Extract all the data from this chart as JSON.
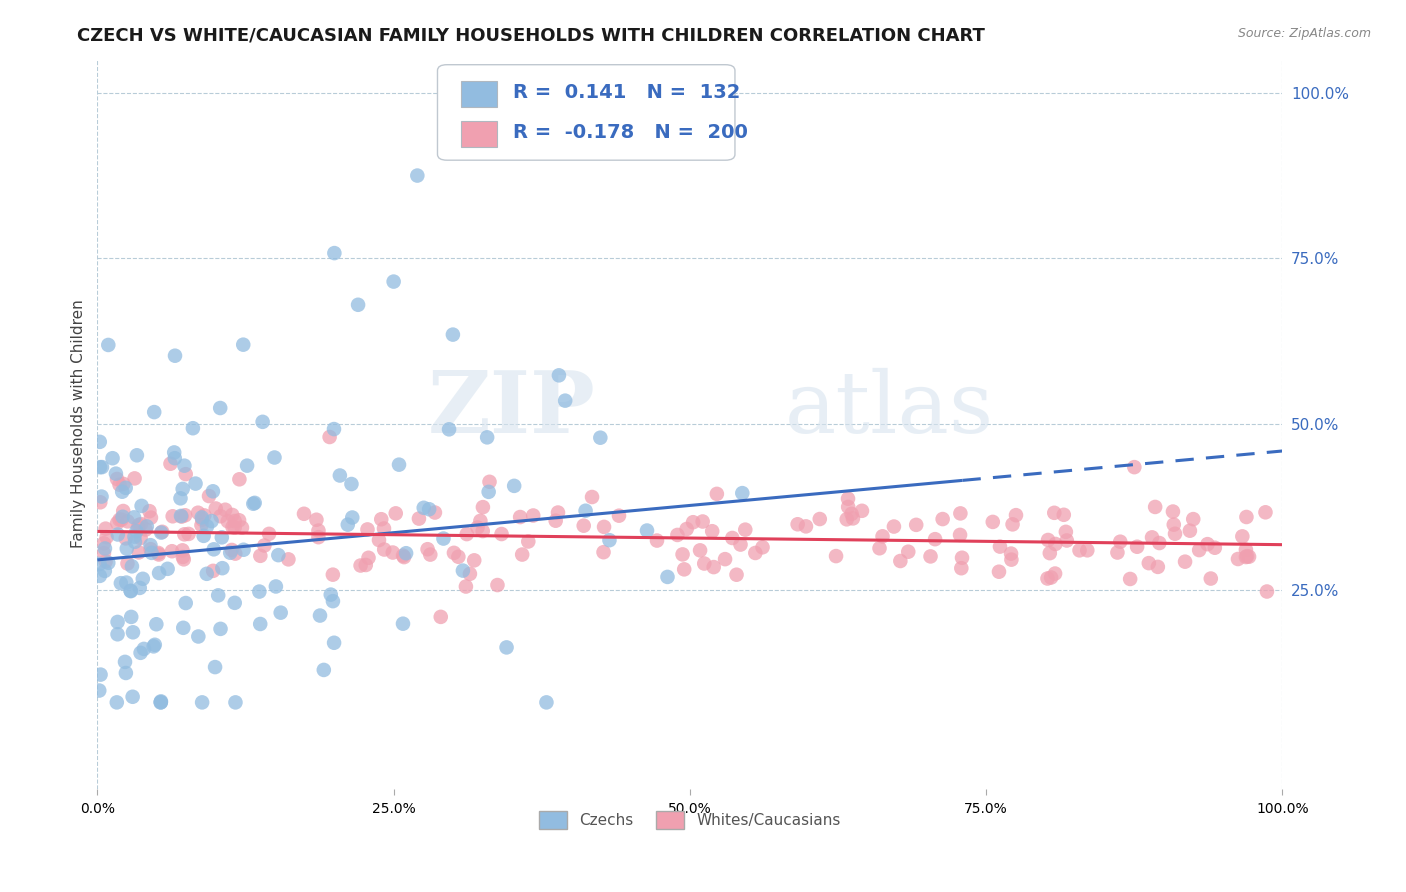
{
  "title": "CZECH VS WHITE/CAUCASIAN FAMILY HOUSEHOLDS WITH CHILDREN CORRELATION CHART",
  "source": "Source: ZipAtlas.com",
  "ylabel": "Family Households with Children",
  "blue_label": "Czechs",
  "pink_label": "Whites/Caucasians",
  "R_blue_str": "0.141",
  "N_blue_str": "132",
  "R_pink_str": "-0.178",
  "N_pink_str": "200",
  "blue_color": "#92bce0",
  "pink_color": "#f0a0b0",
  "trend_blue": "#3a6bbf",
  "trend_pink": "#e0405a",
  "bg_color": "#ffffff",
  "grid_color": "#b8ccd8",
  "xlim": [
    0.0,
    1.0
  ],
  "ylim": [
    -0.05,
    1.05
  ],
  "xticks": [
    0.0,
    0.25,
    0.5,
    0.75,
    1.0
  ],
  "xtick_labels": [
    "0.0%",
    "25.0%",
    "50.0%",
    "75.0%",
    "100.0%"
  ],
  "yticks_right": [
    0.25,
    0.5,
    0.75,
    1.0
  ],
  "ytick_labels_right": [
    "25.0%",
    "50.0%",
    "75.0%",
    "100.0%"
  ],
  "watermark_zip": "ZIP",
  "watermark_atlas": "atlas",
  "title_fontsize": 13,
  "axis_fontsize": 10,
  "legend_fontsize": 14,
  "dot_size": 110,
  "blue_trend_solid_end": 0.73,
  "blue_trend_start_y": 0.295,
  "blue_trend_end_y": 0.415,
  "pink_trend_start_y": 0.338,
  "pink_trend_end_y": 0.318
}
